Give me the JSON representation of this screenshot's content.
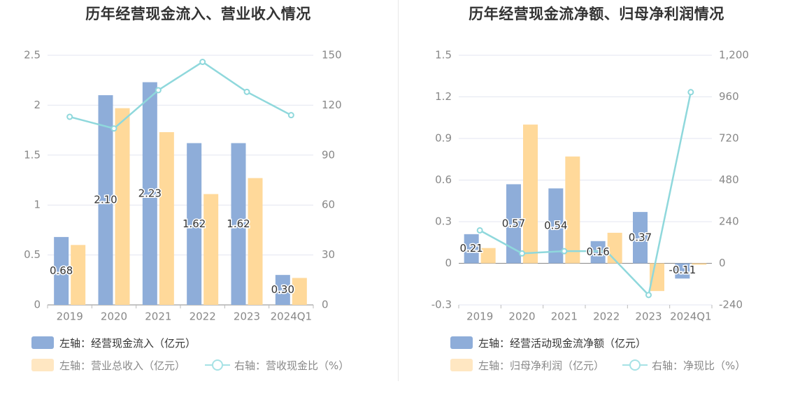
{
  "colors": {
    "bar_primary": "#8eadd9",
    "bar_secondary": "#ffd99a",
    "bar_secondary_legend": "#ffe7c2",
    "line": "#8fd8dc",
    "grid": "#e3e6f0",
    "axis": "#bbbbbb"
  },
  "charts": {
    "left": {
      "title": "历年经营现金流入、营业收入情况",
      "legend": {
        "bar1": "左轴：经营现金流入（亿元）",
        "bar2": "左轴：营业总收入（亿元）",
        "line": "右轴：营收现金比（%）"
      }
    },
    "right": {
      "title": "历年经营现金流净额、归母净利润情况",
      "legend": {
        "bar1": "左轴：经营活动现金流净额（亿元）",
        "bar2": "左轴：归母净利润（亿元）",
        "line": "右轴：净现比（%）"
      }
    }
  },
  "chart_data": [
    {
      "type": "bar",
      "title": "历年经营现金流入、营业收入情况",
      "categories": [
        "2019",
        "2020",
        "2021",
        "2022",
        "2023",
        "2024Q1"
      ],
      "left_axis": {
        "ylim": [
          0,
          2.5
        ],
        "ticks": [
          "0",
          "0.5",
          "1",
          "1.5",
          "2",
          "2.5"
        ]
      },
      "right_axis": {
        "ylim": [
          0,
          150
        ],
        "ticks": [
          "0",
          "30",
          "60",
          "90",
          "120",
          "150"
        ]
      },
      "grid": true,
      "legend_position": "bottom-left",
      "series": [
        {
          "name": "左轴：经营现金流入（亿元）",
          "type": "bar",
          "axis": "left",
          "values": [
            0.68,
            2.1,
            2.23,
            1.62,
            1.62,
            0.3
          ],
          "labels": [
            "0.68",
            "2.10",
            "2.23",
            "1.62",
            "1.62",
            "0.30"
          ]
        },
        {
          "name": "左轴：营业总收入（亿元）",
          "type": "bar",
          "axis": "left",
          "values": [
            0.6,
            1.97,
            1.73,
            1.11,
            1.27,
            0.27
          ]
        },
        {
          "name": "右轴：营收现金比（%）",
          "type": "line",
          "axis": "right",
          "values": [
            113,
            106,
            129,
            146,
            128,
            114
          ]
        }
      ]
    },
    {
      "type": "bar",
      "title": "历年经营现金流净额、归母净利润情况",
      "categories": [
        "2019",
        "2020",
        "2021",
        "2022",
        "2023",
        "2024Q1"
      ],
      "left_axis": {
        "ylim": [
          -0.3,
          1.5
        ],
        "ticks": [
          "-0.3",
          "0",
          "0.3",
          "0.6",
          "0.9",
          "1.2",
          "1.5"
        ]
      },
      "right_axis": {
        "ylim": [
          -240,
          1200
        ],
        "ticks": [
          "-240",
          "0",
          "240",
          "480",
          "720",
          "960",
          "1,200"
        ]
      },
      "grid": true,
      "legend_position": "bottom-left",
      "series": [
        {
          "name": "左轴：经营活动现金流净额（亿元）",
          "type": "bar",
          "axis": "left",
          "values": [
            0.21,
            0.57,
            0.54,
            0.16,
            0.37,
            -0.11
          ],
          "labels": [
            "0.21",
            "0.57",
            "0.54",
            "0.16",
            "0.37",
            "-0.11"
          ]
        },
        {
          "name": "左轴：归母净利润（亿元）",
          "type": "bar",
          "axis": "left",
          "values": [
            0.11,
            1.0,
            0.77,
            0.22,
            -0.2,
            -0.01
          ]
        },
        {
          "name": "右轴：净现比（%）",
          "type": "line",
          "axis": "right",
          "values": [
            190,
            57,
            70,
            70,
            -183,
            987
          ]
        }
      ]
    }
  ]
}
